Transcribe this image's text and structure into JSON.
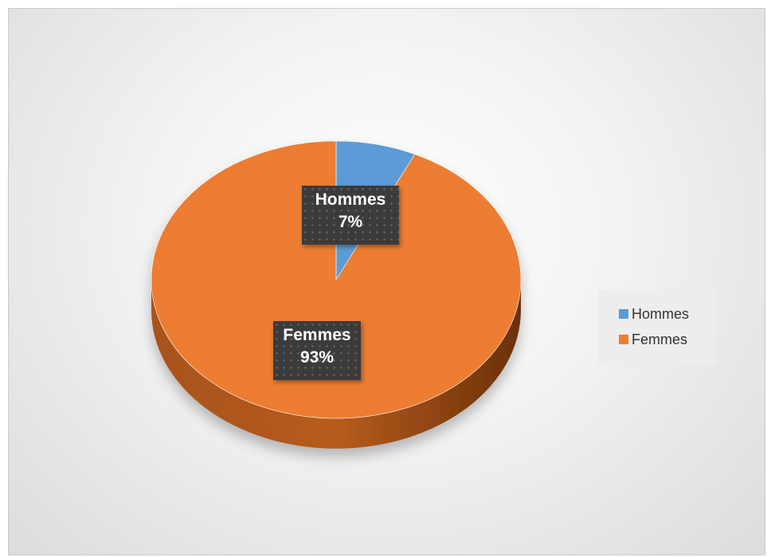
{
  "chart_data": {
    "type": "pie",
    "title": "",
    "categories": [
      "Hommes",
      "Femmes"
    ],
    "values": [
      7,
      93
    ],
    "labels": [
      "7%",
      "93%"
    ],
    "colors": [
      "#5b9bd5",
      "#ed7d31"
    ],
    "legend": {
      "position": "right",
      "entries": [
        "Hommes",
        "Femmes"
      ]
    },
    "style": "3d"
  }
}
